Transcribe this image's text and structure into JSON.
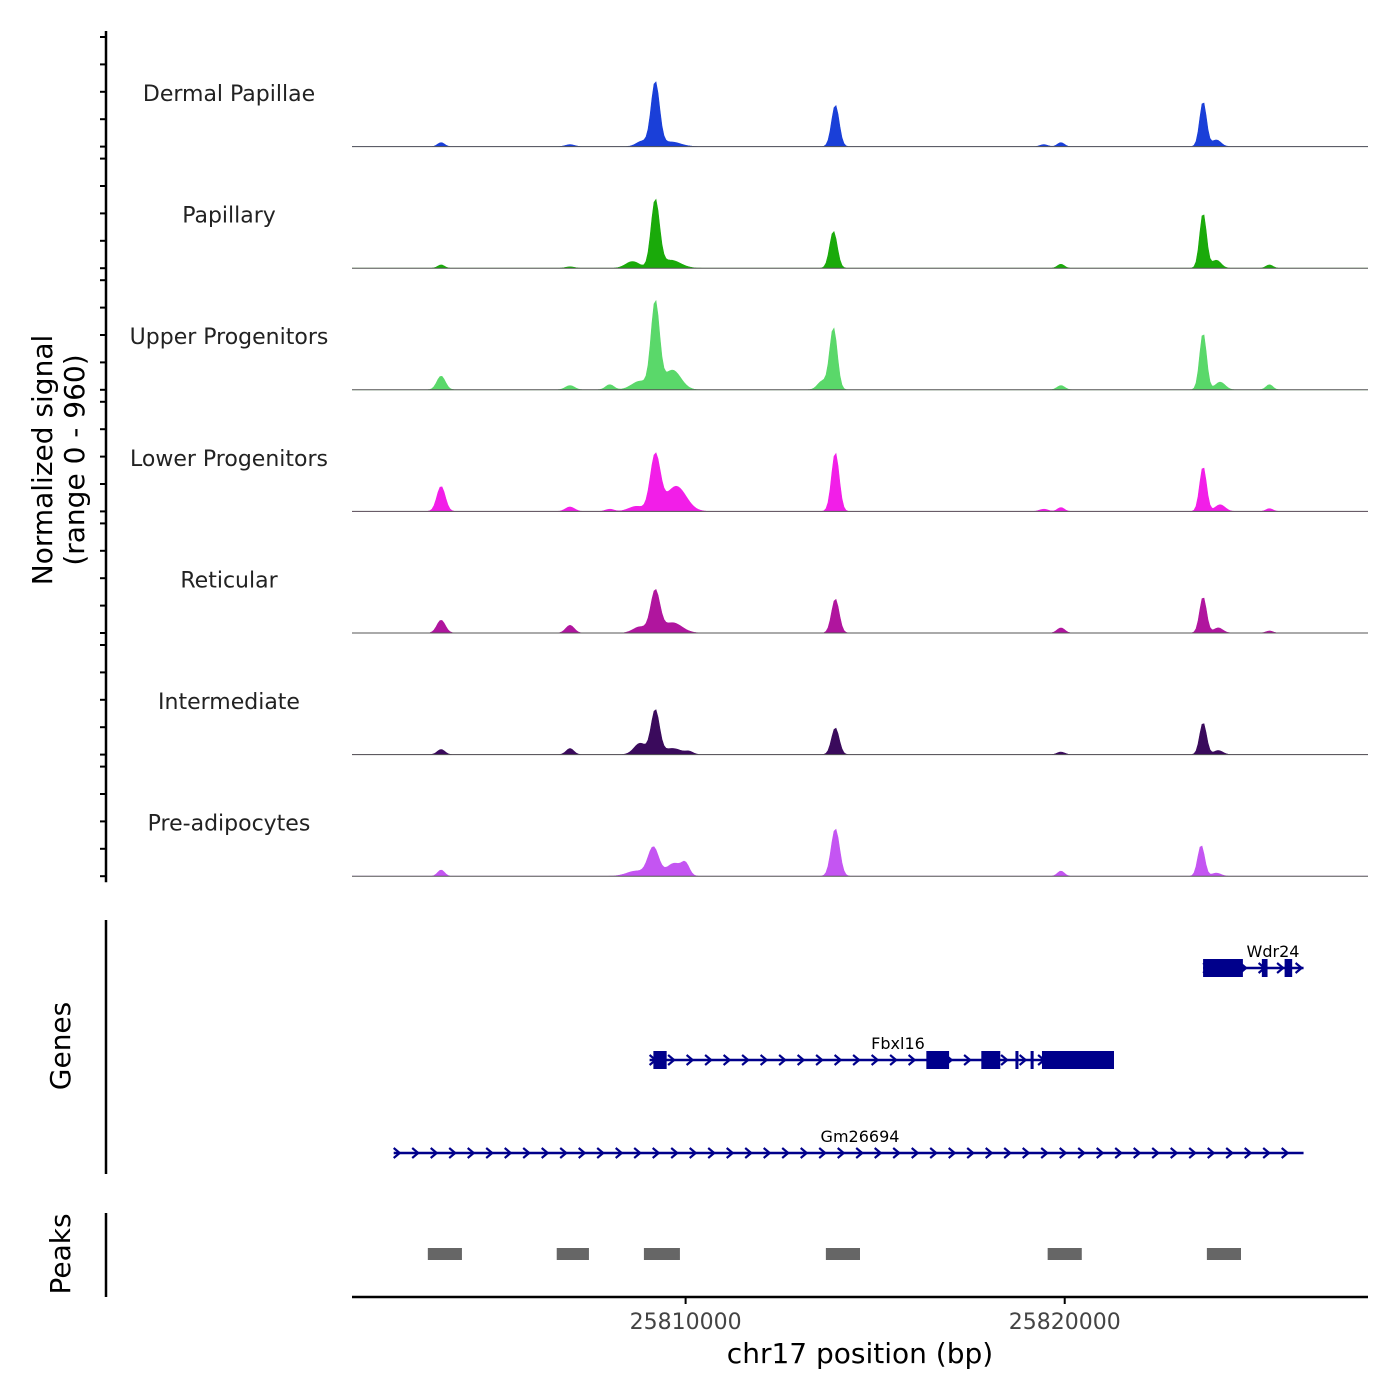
{
  "chart_data": {
    "type": "area",
    "title": "",
    "signal_ylabel": "Normalized signal",
    "signal_range_label": "(range 0 - 960)",
    "genes_label": "Genes",
    "peaks_label": "Peaks",
    "xlabel": "chr17 position (bp)",
    "xlim": [
      25801200,
      25828000
    ],
    "x_ticks": [
      25810000,
      25820000
    ],
    "x_tick_labels": [
      "25810000",
      "25820000"
    ],
    "y_range": [
      0,
      960
    ],
    "tracks": [
      {
        "name": "Dermal Papillae",
        "color": "#1a3fd8",
        "scale": 0.78,
        "peaks": [
          [
            25803550,
            0.06,
            90
          ],
          [
            25806950,
            0.03,
            120
          ],
          [
            25808850,
            0.08,
            150
          ],
          [
            25809200,
            0.95,
            110
          ],
          [
            25809600,
            0.07,
            260
          ],
          [
            25813950,
            0.62,
            100
          ],
          [
            25819450,
            0.03,
            100
          ],
          [
            25819900,
            0.06,
            90
          ],
          [
            25823650,
            0.67,
            90
          ],
          [
            25824000,
            0.1,
            120
          ]
        ]
      },
      {
        "name": "Papillary",
        "color": "#1aaa0a",
        "scale": 0.78,
        "peaks": [
          [
            25803550,
            0.05,
            90
          ],
          [
            25806950,
            0.02,
            120
          ],
          [
            25808600,
            0.1,
            180
          ],
          [
            25809200,
            1.0,
            110
          ],
          [
            25809600,
            0.12,
            260
          ],
          [
            25813900,
            0.55,
            100
          ],
          [
            25819900,
            0.06,
            90
          ],
          [
            25823650,
            0.82,
            90
          ],
          [
            25824000,
            0.12,
            120
          ],
          [
            25825400,
            0.05,
            90
          ]
        ]
      },
      {
        "name": "Upper Progenitors",
        "color": "#5ad86a",
        "scale": 1.0,
        "peaks": [
          [
            25803550,
            0.16,
            110
          ],
          [
            25806950,
            0.05,
            120
          ],
          [
            25808000,
            0.06,
            110
          ],
          [
            25808800,
            0.1,
            220
          ],
          [
            25809200,
            1.0,
            110
          ],
          [
            25809650,
            0.23,
            220
          ],
          [
            25813900,
            0.72,
            100
          ],
          [
            25813600,
            0.1,
            120
          ],
          [
            25819900,
            0.05,
            100
          ],
          [
            25823650,
            0.66,
            90
          ],
          [
            25824100,
            0.09,
            130
          ],
          [
            25825400,
            0.06,
            90
          ]
        ]
      },
      {
        "name": "Lower Progenitors",
        "color": "#f21ee8",
        "scale": 0.65,
        "peaks": [
          [
            25803550,
            0.45,
            110
          ],
          [
            25806950,
            0.08,
            120
          ],
          [
            25808000,
            0.04,
            110
          ],
          [
            25808700,
            0.09,
            200
          ],
          [
            25809200,
            1.0,
            130
          ],
          [
            25809750,
            0.45,
            260
          ],
          [
            25813950,
            1.05,
            100
          ],
          [
            25819450,
            0.04,
            110
          ],
          [
            25819900,
            0.07,
            90
          ],
          [
            25823650,
            0.8,
            90
          ],
          [
            25824100,
            0.12,
            130
          ],
          [
            25825400,
            0.05,
            90
          ]
        ]
      },
      {
        "name": "Reticular",
        "color": "#b0159e",
        "scale": 0.6,
        "peaks": [
          [
            25803550,
            0.25,
            110
          ],
          [
            25806950,
            0.15,
            110
          ],
          [
            25808800,
            0.12,
            180
          ],
          [
            25809200,
            0.8,
            120
          ],
          [
            25809650,
            0.2,
            250
          ],
          [
            25813950,
            0.66,
            100
          ],
          [
            25819900,
            0.1,
            100
          ],
          [
            25823650,
            0.7,
            90
          ],
          [
            25824050,
            0.1,
            120
          ],
          [
            25825400,
            0.04,
            90
          ]
        ]
      },
      {
        "name": "Intermediate",
        "color": "#3a0a5c",
        "scale": 0.6,
        "peaks": [
          [
            25803550,
            0.1,
            100
          ],
          [
            25806950,
            0.12,
            100
          ],
          [
            25808800,
            0.22,
            160
          ],
          [
            25809200,
            0.85,
            110
          ],
          [
            25809650,
            0.12,
            240
          ],
          [
            25810100,
            0.05,
            100
          ],
          [
            25813950,
            0.52,
            100
          ],
          [
            25819900,
            0.05,
            100
          ],
          [
            25823650,
            0.62,
            90
          ],
          [
            25824050,
            0.08,
            120
          ]
        ]
      },
      {
        "name": "Pre-adipocytes",
        "color": "#c455f2",
        "scale": 0.6,
        "peaks": [
          [
            25803550,
            0.12,
            90
          ],
          [
            25808700,
            0.1,
            250
          ],
          [
            25809150,
            0.55,
            140
          ],
          [
            25809700,
            0.25,
            200
          ],
          [
            25810000,
            0.2,
            100
          ],
          [
            25813950,
            0.92,
            110
          ],
          [
            25819900,
            0.1,
            90
          ],
          [
            25823600,
            0.6,
            90
          ],
          [
            25824000,
            0.06,
            120
          ]
        ]
      }
    ],
    "genes": [
      {
        "name": "Wdr24",
        "color": "#00008b",
        "start": 25823650,
        "end": 25826300,
        "strand": "+",
        "row": 0,
        "exons": [
          [
            25823650,
            25824700
          ],
          [
            25825200,
            25825350
          ],
          [
            25825800,
            25826000
          ]
        ]
      },
      {
        "name": "Fbxl16",
        "color": "#00008b",
        "start": 25809050,
        "end": 25821300,
        "strand": "+",
        "row": 1,
        "exons": [
          [
            25809150,
            25809500
          ],
          [
            25816350,
            25816950
          ],
          [
            25817800,
            25818300
          ],
          [
            25818700,
            25818780
          ],
          [
            25819100,
            25819180
          ],
          [
            25819400,
            25821300
          ]
        ]
      },
      {
        "name": "Gm26694",
        "color": "#00008b",
        "start": 25802300,
        "end": 25826300,
        "strand": "+",
        "row": 2,
        "exons": []
      }
    ],
    "peak_regions": [
      [
        25803200,
        25804100
      ],
      [
        25806600,
        25807450
      ],
      [
        25808900,
        25809850
      ],
      [
        25813700,
        25814600
      ],
      [
        25819550,
        25820450
      ],
      [
        25823750,
        25824650
      ]
    ],
    "peaks_color": "#666666"
  }
}
